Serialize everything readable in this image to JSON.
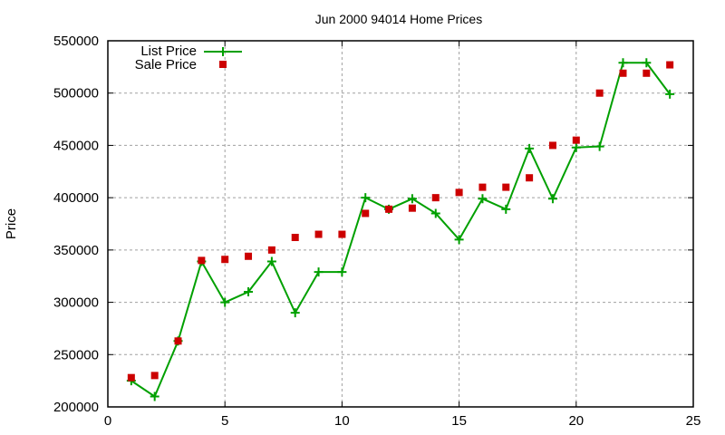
{
  "chart_data": {
    "type": "line",
    "title": "Jun 2000 94014 Home Prices",
    "xlabel": "",
    "ylabel": "Price",
    "xlim": [
      0,
      25
    ],
    "ylim": [
      200000,
      550000
    ],
    "xticks": [
      0,
      5,
      10,
      15,
      20,
      25
    ],
    "yticks": [
      200000,
      250000,
      300000,
      350000,
      400000,
      450000,
      500000,
      550000
    ],
    "grid": true,
    "legend_position": "top-left",
    "x": [
      1,
      2,
      3,
      4,
      5,
      6,
      7,
      8,
      9,
      10,
      11,
      12,
      13,
      14,
      15,
      16,
      17,
      18,
      19,
      20,
      21,
      22,
      23,
      24
    ],
    "series": [
      {
        "name": "List Price",
        "style": "linespoints",
        "marker": "plus",
        "color": "#00a000",
        "values": [
          225000,
          210000,
          263000,
          339000,
          300000,
          310000,
          339000,
          290000,
          329000,
          329000,
          400000,
          389000,
          399000,
          385000,
          360000,
          399000,
          389000,
          447000,
          399000,
          448000,
          449000,
          529000,
          529000,
          499000
        ]
      },
      {
        "name": "Sale Price",
        "style": "points",
        "marker": "square",
        "color": "#cc0000",
        "values": [
          228000,
          230000,
          263000,
          340000,
          341000,
          344000,
          350000,
          362000,
          365000,
          365000,
          385000,
          389000,
          390000,
          400000,
          405000,
          410000,
          410000,
          419000,
          450000,
          455000,
          500000,
          519000,
          519000,
          527000
        ]
      }
    ]
  }
}
